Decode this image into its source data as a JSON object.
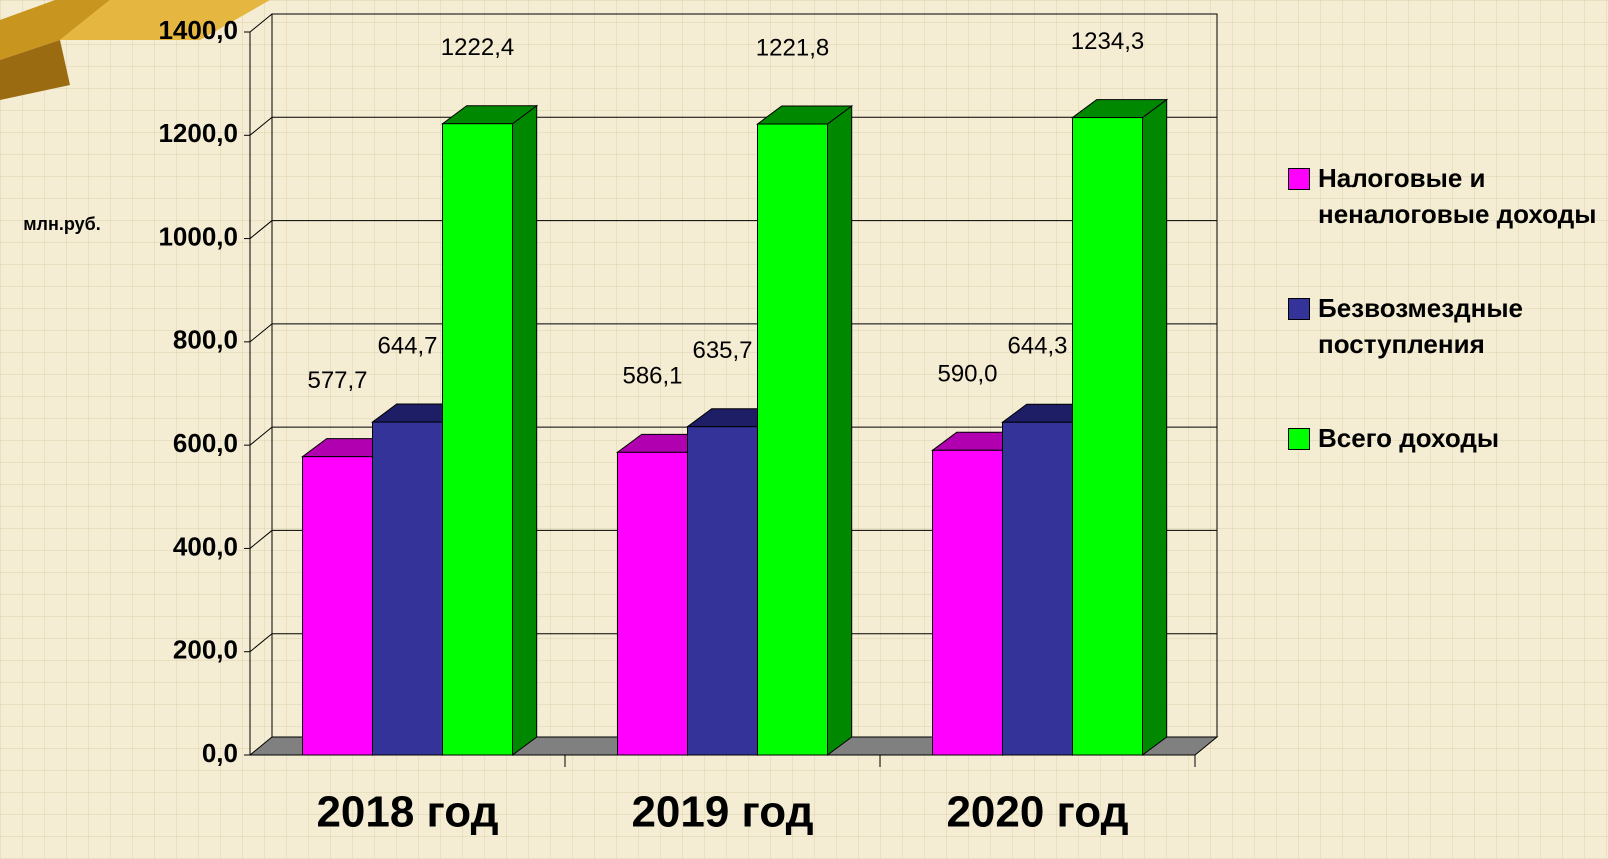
{
  "chart_data": {
    "type": "bar3d",
    "y_label": "млн.руб.",
    "categories": [
      "2018 год",
      "2019 год",
      "2020 год"
    ],
    "series": [
      {
        "name": "Налоговые и неналоговые доходы",
        "color": "#ff00ff",
        "side": "#b000b0",
        "values": [
          577.7,
          586.1,
          590.0
        ],
        "value_labels": [
          "577,7",
          "586,1",
          "590,0"
        ]
      },
      {
        "name": "Безвозмездные поступления",
        "color": "#333399",
        "side": "#1e1e66",
        "values": [
          644.7,
          635.7,
          644.3
        ],
        "value_labels": [
          "644,7",
          "635,7",
          "644,3"
        ]
      },
      {
        "name": "Всего доходы",
        "color": "#00ff00",
        "side": "#008800",
        "values": [
          1222.4,
          1221.8,
          1234.3
        ],
        "value_labels": [
          "1222,4",
          "1221,8",
          "1234,3"
        ]
      }
    ],
    "ylim": [
      0,
      1400
    ],
    "yticks": [
      {
        "value": 0,
        "label": "0,0"
      },
      {
        "value": 200,
        "label": "200,0"
      },
      {
        "value": 400,
        "label": "400,0"
      },
      {
        "value": 600,
        "label": "600,0"
      },
      {
        "value": 800,
        "label": "800,0"
      },
      {
        "value": 1000,
        "label": "1000,0"
      },
      {
        "value": 1200,
        "label": "1200,0"
      },
      {
        "value": 1400,
        "label": "1400,0"
      }
    ],
    "grid": true
  }
}
